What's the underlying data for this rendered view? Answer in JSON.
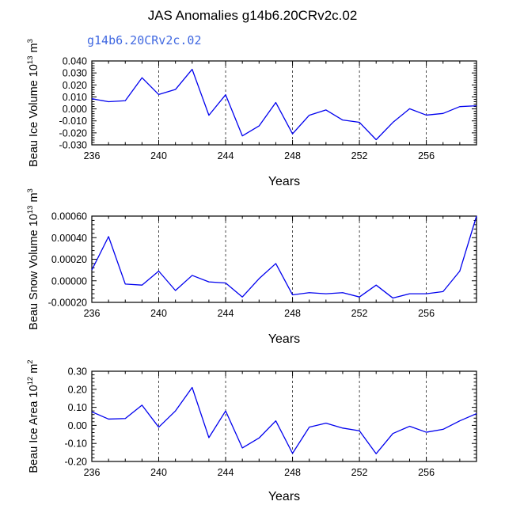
{
  "title": "JAS Anomalies g14b6.20CRv2c.02",
  "subtitle": "g14b6.20CRv2c.02",
  "colors": {
    "line": "#0000ee",
    "subtitle": "#4169e1",
    "axis": "#000000"
  },
  "chart_data": [
    {
      "type": "line",
      "ylabel": {
        "main": "Beau Ice Volume 10",
        "sup": "13",
        "unit": " m",
        "unit_sup": "3"
      },
      "xlabel": "Years",
      "xlim": [
        236,
        259
      ],
      "ylim": [
        -0.03,
        0.04
      ],
      "xticks": [
        236,
        240,
        244,
        248,
        252,
        256
      ],
      "yticks": [
        -0.03,
        -0.02,
        -0.01,
        0.0,
        0.01,
        0.02,
        0.03,
        0.04
      ],
      "ytick_labels": [
        "-0.030",
        "-0.020",
        "-0.010",
        "0.000",
        "0.010",
        "0.020",
        "0.030",
        "0.040"
      ],
      "x": [
        236,
        237,
        238,
        239,
        240,
        241,
        242,
        243,
        244,
        245,
        246,
        247,
        248,
        249,
        250,
        251,
        252,
        253,
        254,
        255,
        256,
        257,
        258,
        259
      ],
      "values": [
        0.0085,
        0.006,
        0.0068,
        0.026,
        0.012,
        0.0162,
        0.033,
        -0.0053,
        0.0118,
        -0.0225,
        -0.0142,
        0.0053,
        -0.0208,
        -0.0053,
        -0.0009,
        -0.0093,
        -0.0112,
        -0.0257,
        -0.0113,
        0.0001,
        -0.0052,
        -0.0038,
        0.0019,
        0.0026
      ]
    },
    {
      "type": "line",
      "ylabel": {
        "main": "Beau Snow Volume 10",
        "sup": "13",
        "unit": " m",
        "unit_sup": "3"
      },
      "xlabel": "Years",
      "xlim": [
        236,
        259
      ],
      "ylim": [
        -0.0002,
        0.0006
      ],
      "xticks": [
        236,
        240,
        244,
        248,
        252,
        256
      ],
      "yticks": [
        -0.0002,
        0.0,
        0.0002,
        0.0004,
        0.0006
      ],
      "ytick_labels": [
        "-0.00020",
        "0.00000",
        "0.00020",
        "0.00040",
        "0.00060"
      ],
      "x": [
        236,
        237,
        238,
        239,
        240,
        241,
        242,
        243,
        244,
        245,
        246,
        247,
        248,
        249,
        250,
        251,
        252,
        253,
        254,
        255,
        256,
        257,
        258,
        259
      ],
      "values": [
        0.0001,
        0.00041,
        -3e-05,
        -4e-05,
        9e-05,
        -9e-05,
        5e-05,
        -1e-05,
        -2e-05,
        -0.00015,
        2e-05,
        0.00016,
        -0.00013,
        -0.00011,
        -0.00012,
        -0.00011,
        -0.00015,
        -4e-05,
        -0.00016,
        -0.00012,
        -0.00012,
        -0.0001,
        9e-05,
        0.0006
      ]
    },
    {
      "type": "line",
      "ylabel": {
        "main": "Beau Ice Area 10",
        "sup": "12",
        "unit": " m",
        "unit_sup": "2"
      },
      "xlabel": "Years",
      "xlim": [
        236,
        259
      ],
      "ylim": [
        -0.2,
        0.3
      ],
      "xticks": [
        236,
        240,
        244,
        248,
        252,
        256
      ],
      "yticks": [
        -0.2,
        -0.1,
        0.0,
        0.1,
        0.2,
        0.3
      ],
      "ytick_labels": [
        "-0.20",
        "-0.10",
        "0.00",
        "0.10",
        "0.20",
        "0.30"
      ],
      "x": [
        236,
        237,
        238,
        239,
        240,
        241,
        242,
        243,
        244,
        245,
        246,
        247,
        248,
        249,
        250,
        251,
        252,
        253,
        254,
        255,
        256,
        257,
        258,
        259
      ],
      "values": [
        0.075,
        0.035,
        0.038,
        0.112,
        -0.01,
        0.08,
        0.21,
        -0.068,
        0.08,
        -0.125,
        -0.07,
        0.025,
        -0.155,
        -0.01,
        0.012,
        -0.015,
        -0.03,
        -0.157,
        -0.045,
        -0.005,
        -0.038,
        -0.022,
        0.025,
        0.065
      ]
    }
  ]
}
